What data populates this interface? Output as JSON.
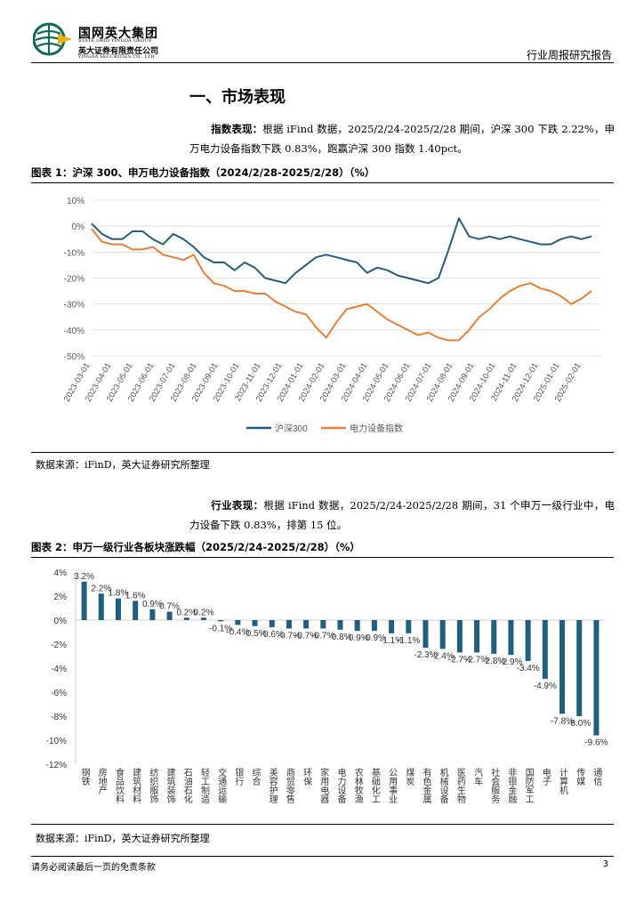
{
  "header": {
    "company_cn": "国网英大集团",
    "company_en": "STATE GRID YINGDA GROUP",
    "securities_cn": "英大证券有限责任公司",
    "securities_en": "YINGDA SECURITIES CO., LTD.",
    "report_type": "行业周报研究报告"
  },
  "section": {
    "title": "一、市场表现"
  },
  "para1": {
    "label": "指数表现：",
    "text": "根据 iFind 数据，2025/2/24-2025/2/28 期间，沪深 300 下跌 2.22%，申万电力设备指数下跌 0.83%，跑赢沪深 300 指数 1.40pct。"
  },
  "figure1": {
    "title": "图表 1：沪深 300、申万电力设备指数（2024/2/28-2025/2/28）（%）",
    "source": "数据来源：iFinD，英大证券研究所整理"
  },
  "para2": {
    "label": "行业表现：",
    "text": "根据 iFind 数据，2025/2/24-2025/2/28 期间，31 个申万一级行业中，电力设备下跌 0.83%，排第 15 位。"
  },
  "figure2": {
    "title": "图表 2：申万一级行业各板块涨跌幅（2025/2/24-2025/2/28）（%）",
    "source": "数据来源：iFinD，英大证券研究所整理"
  },
  "footer": {
    "disclaimer": "请务必阅读最后一页的免责条款",
    "page": "3"
  },
  "colors": {
    "hs300": "#1f5f7f",
    "power": "#ed7d31",
    "bar": "#1f5f7f"
  },
  "chart_data": [
    {
      "type": "line",
      "title": "沪深 300、申万电力设备指数（2024/2/28-2025/2/28）（%）",
      "ylim": [
        -50,
        10
      ],
      "yticks": [
        "10%",
        "0%",
        "-10%",
        "-20%",
        "-30%",
        "-40%",
        "-50%"
      ],
      "xticks": [
        "2023-03-01",
        "2023-04-01",
        "2023-05-01",
        "2023-06-01",
        "2023-07-01",
        "2023-08-01",
        "2023-09-01",
        "2023-10-01",
        "2023-11-01",
        "2023-12-01",
        "2024-01-01",
        "2024-02-01",
        "2024-03-01",
        "2024-04-01",
        "2024-05-01",
        "2024-06-01",
        "2024-07-01",
        "2024-08-01",
        "2024-09-01",
        "2024-10-01",
        "2024-11-01",
        "2024-12-01",
        "2025-01-01",
        "2025-02-01"
      ],
      "legend": [
        "沪深300",
        "电力设备指数"
      ],
      "series": [
        {
          "name": "沪深300",
          "values": [
            1,
            -3,
            -5,
            -5,
            -2,
            -2,
            -5,
            -7,
            -3,
            -5,
            -8,
            -12,
            -14,
            -14,
            -17,
            -14,
            -16,
            -20,
            -21,
            -22,
            -18,
            -15,
            -12,
            -11,
            -12,
            -13,
            -14,
            -18,
            -16,
            -17,
            -19,
            -20,
            -21,
            -22,
            -20,
            -9,
            3,
            -4,
            -5,
            -4,
            -5,
            -4,
            -5,
            -6,
            -7,
            -7,
            -5,
            -4,
            -5,
            -4
          ]
        },
        {
          "name": "电力设备指数",
          "values": [
            -1,
            -6,
            -7,
            -7,
            -9,
            -9,
            -8,
            -11,
            -12,
            -13,
            -11,
            -18,
            -22,
            -23,
            -25,
            -25,
            -26,
            -26,
            -29,
            -31,
            -33,
            -34,
            -39,
            -43,
            -37,
            -32,
            -31,
            -30,
            -33,
            -36,
            -38,
            -40,
            -42,
            -41,
            -43,
            -44,
            -44,
            -40,
            -35,
            -32,
            -28,
            -25,
            -23,
            -22,
            -24,
            -25,
            -27,
            -30,
            -28,
            -25
          ]
        }
      ]
    },
    {
      "type": "bar",
      "title": "申万一级行业各板块涨跌幅（2025/2/24-2025/2/28）（%）",
      "ylim": [
        -12,
        4
      ],
      "yticks": [
        "4%",
        "2%",
        "0%",
        "-2%",
        "-4%",
        "-6%",
        "-8%",
        "-10%",
        "-12%"
      ],
      "categories": [
        "钢铁",
        "房地产",
        "食品饮料",
        "建筑材料",
        "纺织服饰",
        "建筑装饰",
        "石油石化",
        "轻工制造",
        "交通运输",
        "银行",
        "综合",
        "美容护理",
        "商贸零售",
        "环保",
        "家用电器",
        "电力设备",
        "农林牧渔",
        "基础化工",
        "公用事业",
        "煤炭",
        "有色金属",
        "机械设备",
        "医药生物",
        "汽车",
        "社会服务",
        "非银金融",
        "国防军工",
        "电子",
        "计算机",
        "传媒",
        "通信"
      ],
      "values": [
        3.2,
        2.2,
        1.8,
        1.6,
        0.9,
        0.7,
        0.2,
        0.2,
        -0.1,
        -0.4,
        -0.5,
        -0.6,
        -0.7,
        -0.7,
        -0.7,
        -0.8,
        -0.9,
        -0.9,
        -1.1,
        -1.1,
        -2.3,
        -2.4,
        -2.7,
        -2.7,
        -2.8,
        -2.9,
        -3.4,
        -4.9,
        -7.8,
        -8.0,
        -9.6
      ],
      "labels": [
        "3.2%",
        "2.2%",
        "1.8%",
        "1.6%",
        "0.9%",
        "0.7%",
        "0.2%",
        "0.2%",
        "-0.1%",
        "-0.4%",
        "-0.5%",
        "-0.6%",
        "-0.7%",
        "-0.7%",
        "-0.7%",
        "-0.8%",
        "-0.9%",
        "-0.9%",
        "-1.1%",
        "-1.1%",
        "-2.3%",
        "-2.4%",
        "-2.7%",
        "-2.7%",
        "-2.8%",
        "-2.9%",
        "-3.4%",
        "-4.9%",
        "-7.8%",
        "-8.0%",
        "-9.6%"
      ]
    }
  ]
}
